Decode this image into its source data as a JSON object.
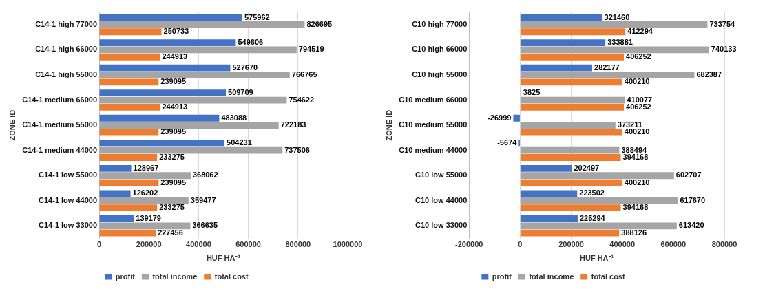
{
  "chart_data": [
    {
      "type": "bar",
      "orientation": "horizontal",
      "xlabel": "HUF HA⁻¹",
      "ylabel": "ZONE ID",
      "categories": [
        "C14-1 high 77000",
        "C14-1 high 66000",
        "C14-1 high 55000",
        "C14-1 medium 66000",
        "C14-1 medium 55000",
        "C14-1 medium 44000",
        "C14-1 low 55000",
        "C14-1 low 44000",
        "C14-1 low 33000"
      ],
      "series": [
        {
          "name": "profit",
          "color": "#4472c4",
          "values": [
            575962,
            549606,
            527670,
            509709,
            483088,
            504231,
            128967,
            126202,
            139179
          ]
        },
        {
          "name": "total income",
          "color": "#a5a5a5",
          "values": [
            826695,
            794519,
            766765,
            754622,
            722183,
            737506,
            368062,
            359477,
            366635
          ]
        },
        {
          "name": "total cost",
          "color": "#ed7d31",
          "values": [
            250733,
            244913,
            239095,
            244913,
            239095,
            233275,
            239095,
            233275,
            227456
          ]
        }
      ],
      "xlim": [
        0,
        1000000
      ],
      "xticks": [
        0,
        200000,
        400000,
        600000,
        800000,
        1000000
      ],
      "grid": "x",
      "legend": "bottom",
      "data_labels": true
    },
    {
      "type": "bar",
      "orientation": "horizontal",
      "xlabel": "HUF HA⁻¹",
      "ylabel": "ZONE ID",
      "categories": [
        "C10 high 77000",
        "C10 high 66000",
        "C10 high 55000",
        "C10 medium 66000",
        "C10 medium 55000",
        "C10 medium 44000",
        "C10 low 55000",
        "C10 low 44000",
        "C10 low 33000"
      ],
      "series": [
        {
          "name": "profit",
          "color": "#4472c4",
          "values": [
            321460,
            333881,
            282177,
            3825,
            -26999,
            -5674,
            202497,
            223502,
            225294
          ]
        },
        {
          "name": "total income",
          "color": "#a5a5a5",
          "values": [
            733754,
            740133,
            682387,
            410077,
            373211,
            388494,
            602707,
            617670,
            613420
          ]
        },
        {
          "name": "total cost",
          "color": "#ed7d31",
          "values": [
            412294,
            406252,
            400210,
            406252,
            400210,
            394168,
            400210,
            394168,
            388126
          ]
        }
      ],
      "xlim": [
        -200000,
        800000
      ],
      "xticks": [
        -200000,
        0,
        200000,
        400000,
        600000,
        800000
      ],
      "grid": "x",
      "legend": "bottom",
      "data_labels": true
    }
  ]
}
